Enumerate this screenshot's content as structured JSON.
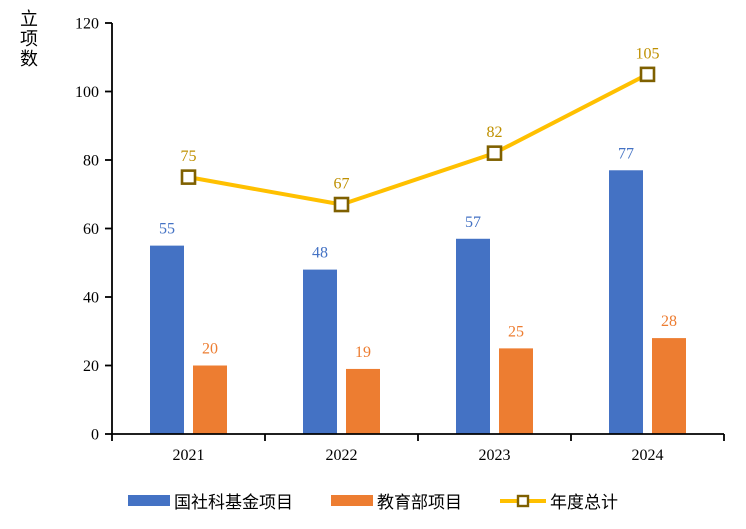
{
  "chart_data": {
    "type": "bar",
    "subtype": "grouped-bars-with-line-overlay",
    "title": "",
    "xlabel": "",
    "ylabel": "立项数",
    "categories": [
      "2021",
      "2022",
      "2023",
      "2024"
    ],
    "series": [
      {
        "name": "国社科基金项目",
        "type": "bar",
        "color": "#4472C4",
        "label_color": "#4472C4",
        "values": [
          55,
          48,
          57,
          77
        ]
      },
      {
        "name": "教育部项目",
        "type": "bar",
        "color": "#ED7D31",
        "label_color": "#ED7D31",
        "values": [
          20,
          19,
          25,
          28
        ]
      },
      {
        "name": "年度总计",
        "type": "line",
        "color": "#FFC000",
        "marker": "square-outline",
        "marker_fill": "#FFFFFF",
        "marker_border": "#7F6000",
        "label_color": "#BF9000",
        "values": [
          75,
          67,
          82,
          105
        ]
      }
    ],
    "ylim": [
      0,
      120
    ],
    "ytick_interval": 20,
    "ytick_labels": [
      "0",
      "20",
      "40",
      "60",
      "80",
      "100",
      "120"
    ],
    "grid": "off",
    "legend_position": "bottom",
    "axis_color": "#000000",
    "data_labels": "on"
  }
}
